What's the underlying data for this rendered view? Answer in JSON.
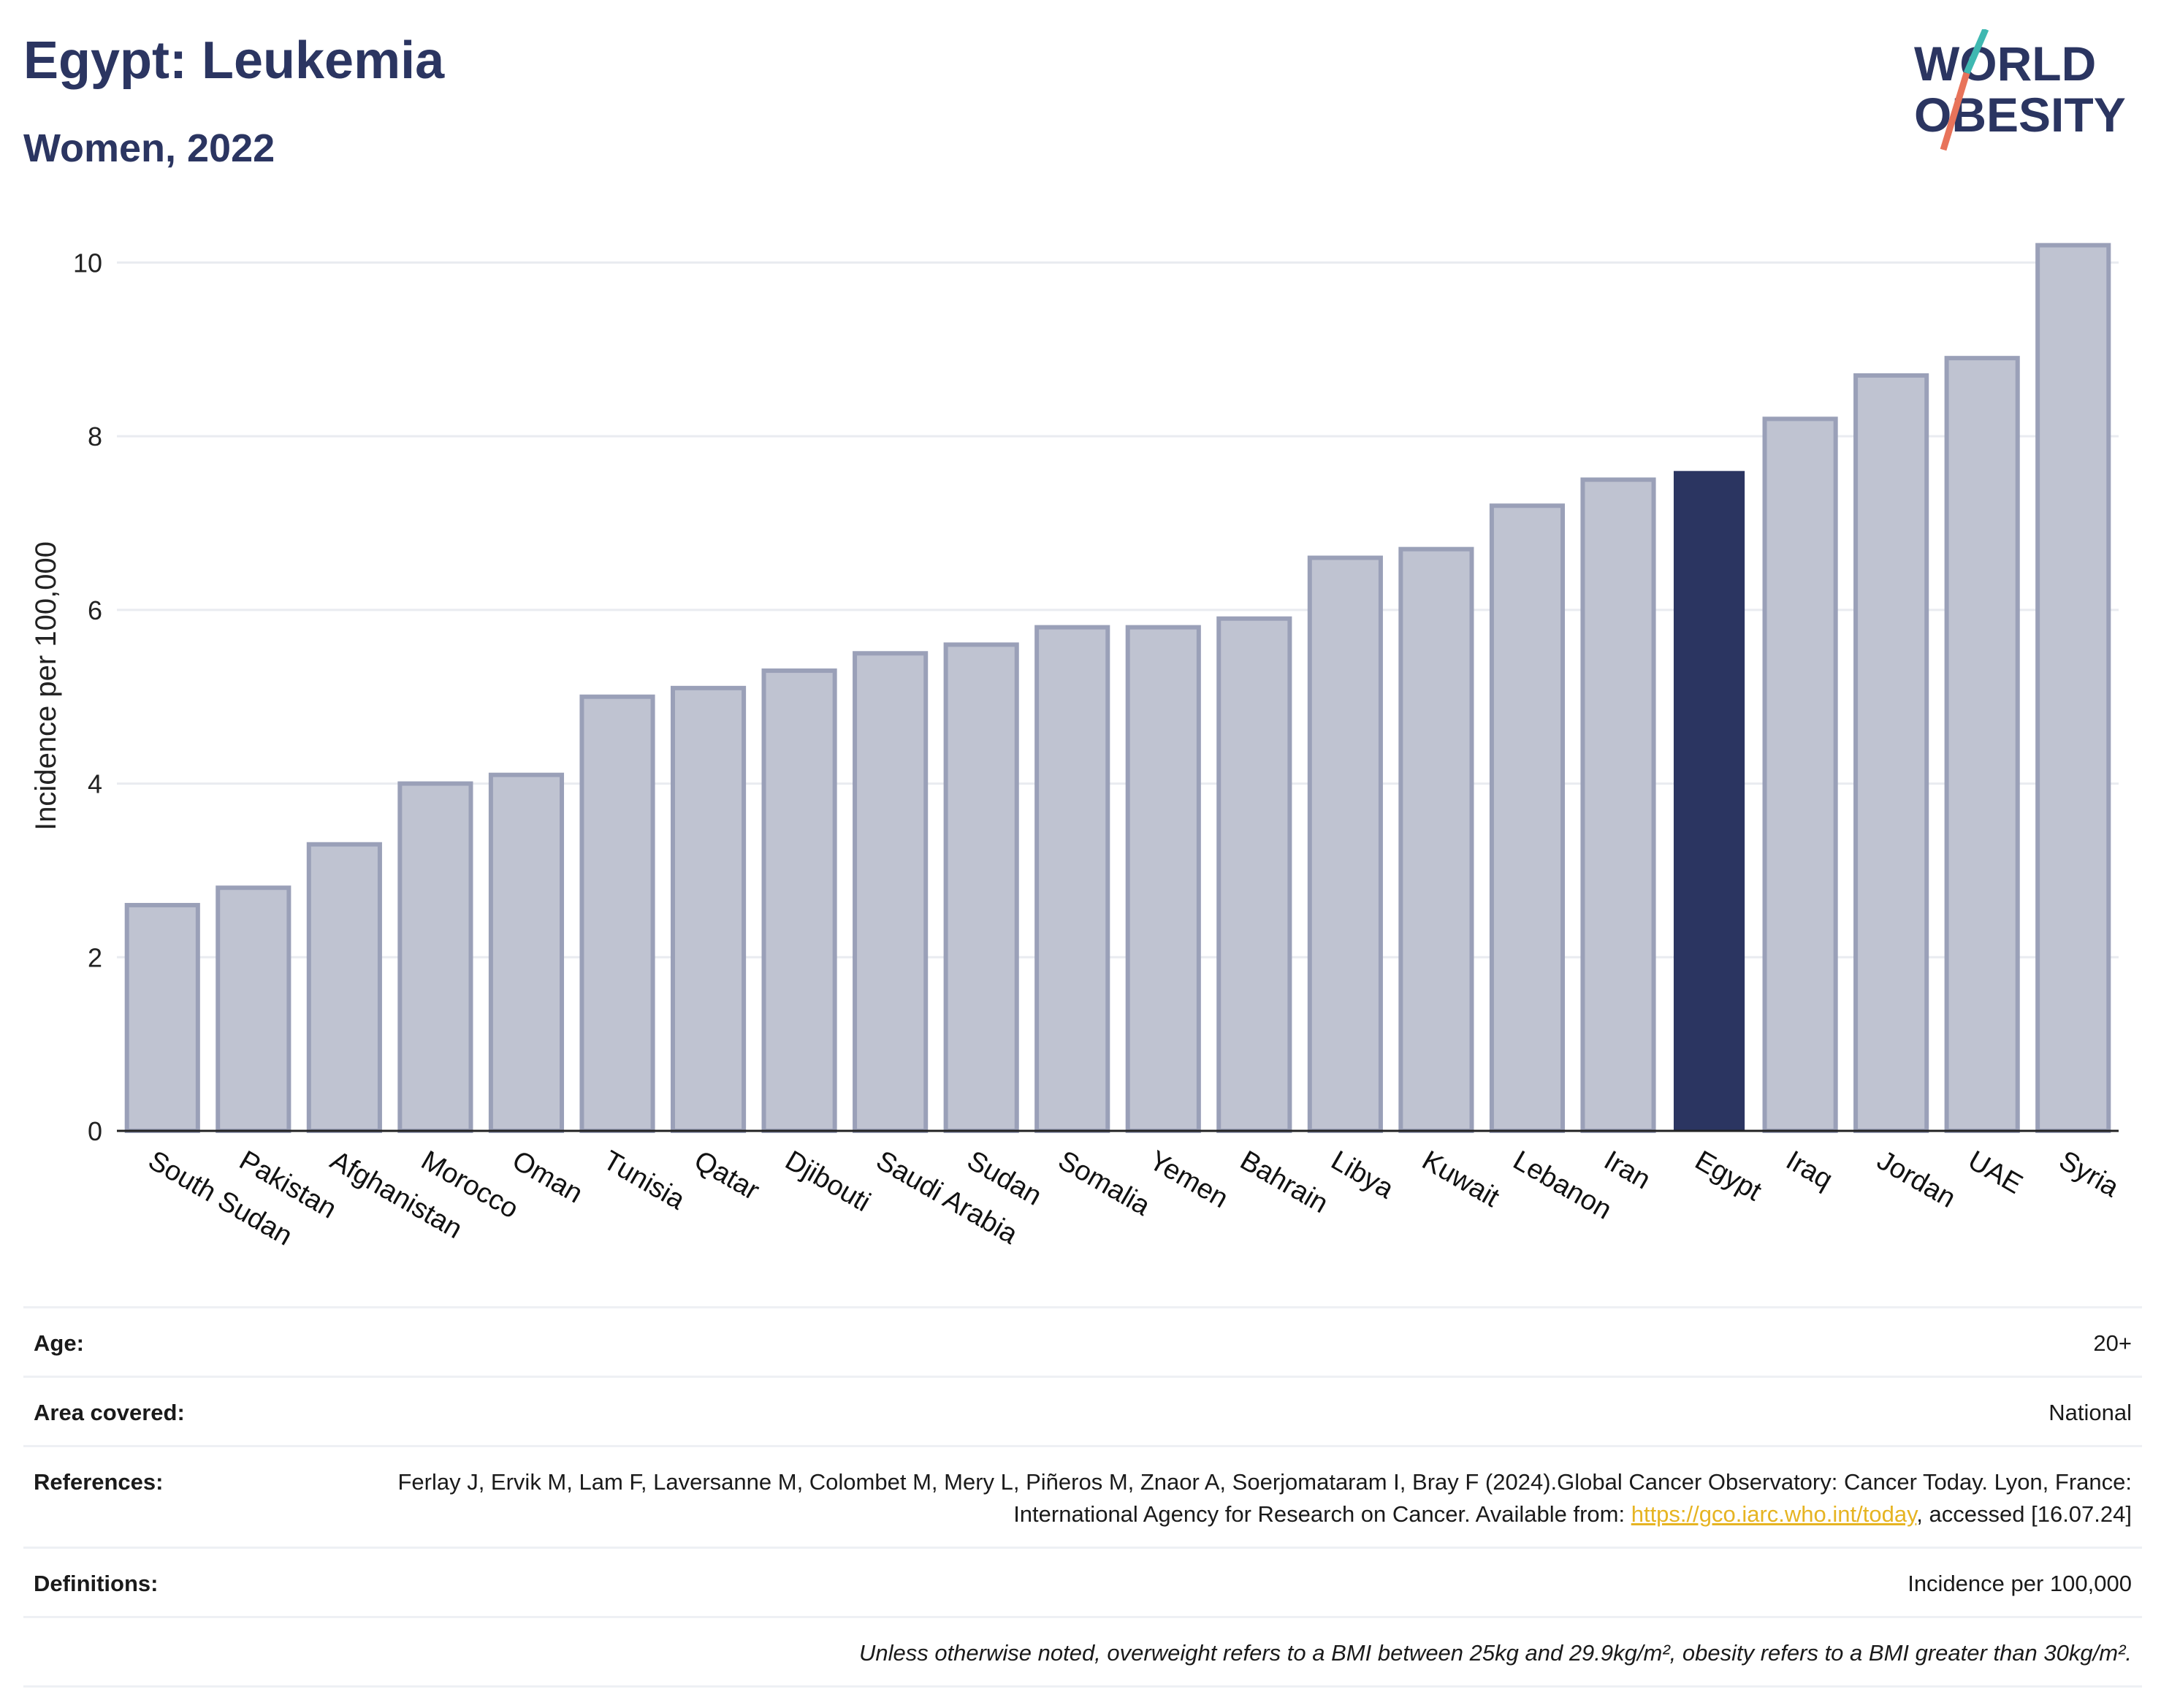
{
  "header": {
    "title": "Egypt: Leukemia",
    "subtitle": "Women, 2022"
  },
  "logo": {
    "line1": "WORLD",
    "line2": "OBESITY",
    "accent_colors": [
      "#3fb8b1",
      "#e8735a"
    ]
  },
  "colors": {
    "highlight": "#2b3561",
    "bar": "#bfc3d1",
    "bar_border": "#9aa0b8",
    "grid": "#e9ebf0",
    "axis": "#222222"
  },
  "chart_data": {
    "type": "bar",
    "title": "Egypt: Leukemia",
    "subtitle": "Women, 2022",
    "xlabel": "",
    "ylabel": "Incidence per 100,000",
    "ylim": [
      0,
      10.5
    ],
    "yticks": [
      0,
      2,
      4,
      6,
      8,
      10
    ],
    "grid": true,
    "highlight": "Egypt",
    "categories": [
      "South Sudan",
      "Pakistan",
      "Afghanistan",
      "Morocco",
      "Oman",
      "Tunisia",
      "Qatar",
      "Djibouti",
      "Saudi Arabia",
      "Sudan",
      "Somalia",
      "Yemen",
      "Bahrain",
      "Libya",
      "Kuwait",
      "Lebanon",
      "Iran",
      "Egypt",
      "Iraq",
      "Jordan",
      "UAE",
      "Syria"
    ],
    "values": [
      2.6,
      2.8,
      3.3,
      4.0,
      4.1,
      5.0,
      5.1,
      5.3,
      5.5,
      5.6,
      5.8,
      5.8,
      5.9,
      6.6,
      6.7,
      7.2,
      7.5,
      7.6,
      8.2,
      8.7,
      8.9,
      10.2
    ]
  },
  "meta": {
    "age_label": "Age:",
    "age_value": "20+",
    "area_label": "Area covered:",
    "area_value": "National",
    "references_label": "References:",
    "references_text": "Ferlay J, Ervik M, Lam F, Laversanne M, Colombet M, Mery L, Piñeros M, Znaor A, Soerjomataram I, Bray F (2024).Global Cancer Observatory: Cancer Today. Lyon, France: International Agency for Research on Cancer. Available from: ",
    "references_link": "https://gco.iarc.who.int/today",
    "references_tail": ", accessed [16.07.24]",
    "definitions_label": "Definitions:",
    "definitions_value": "Incidence per 100,000",
    "note": "Unless otherwise noted, overweight refers to a BMI between 25kg and 29.9kg/m², obesity refers to a BMI greater than 30kg/m²."
  }
}
